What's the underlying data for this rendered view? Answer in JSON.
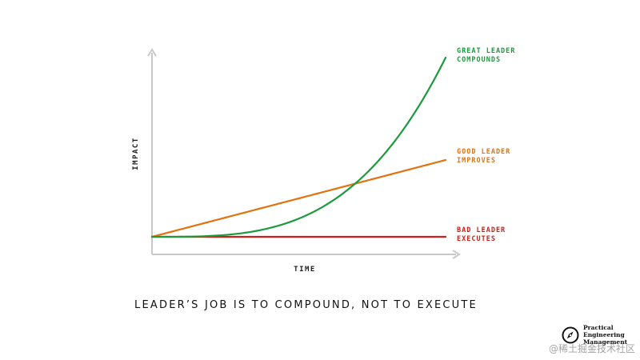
{
  "chart_data": {
    "type": "line",
    "xlabel": "TIME",
    "ylabel": "IMPACT",
    "series": [
      {
        "name": "BAD LEADER EXECUTES",
        "label_lines": [
          "BAD LEADER",
          "EXECUTES"
        ],
        "color": "#cc1f1a",
        "shape": "constant"
      },
      {
        "name": "GOOD LEADER IMPROVES",
        "label_lines": [
          "GOOD LEADER",
          "IMPROVES"
        ],
        "color": "#e07312",
        "shape": "linear"
      },
      {
        "name": "GREAT LEADER COMPOUNDS",
        "label_lines": [
          "GREAT LEADER",
          "COMPOUNDS"
        ],
        "color": "#1c9a3d",
        "shape": "exponential"
      }
    ],
    "axis_color": "#c8c8c8"
  },
  "tagline": "LEADER’S JOB IS TO COMPOUND, NOT TO EXECUTE",
  "brand": {
    "logo_icon": "compass-icon",
    "lines": [
      "Practical",
      "Engineering",
      "Management"
    ]
  },
  "watermark": "@稀土掘金技术社区"
}
